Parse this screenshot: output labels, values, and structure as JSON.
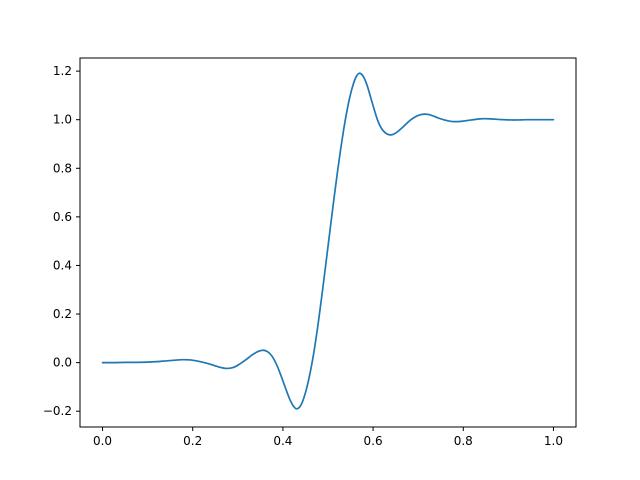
{
  "figure": {
    "background": "#ffffff"
  },
  "chart_data": {
    "type": "line",
    "title": "",
    "xlabel": "",
    "ylabel": "",
    "grid": false,
    "legend": null,
    "background": "#ffffff",
    "spine_color": "#000000",
    "tick_label_color": "#000000",
    "xlim": [
      -0.05,
      1.05
    ],
    "ylim": [
      -0.265,
      1.254
    ],
    "xticks": {
      "values": [
        0.0,
        0.2,
        0.4,
        0.6,
        0.8,
        1.0
      ],
      "labels": [
        "0.0",
        "0.2",
        "0.4",
        "0.6",
        "0.8",
        "1.0"
      ]
    },
    "yticks": {
      "values": [
        -0.2,
        0.0,
        0.2,
        0.4,
        0.6,
        0.8,
        1.0,
        1.2
      ],
      "labels": [
        "−0.2",
        "0.0",
        "0.2",
        "0.4",
        "0.6",
        "0.8",
        "1.0",
        "1.2"
      ]
    },
    "series": [
      {
        "name": "series-1",
        "color": "#1f77b4",
        "line_width": 1.7,
        "x": [
          0.0,
          0.025,
          0.05,
          0.075,
          0.1,
          0.12,
          0.14,
          0.16,
          0.178,
          0.195,
          0.212,
          0.23,
          0.248,
          0.262,
          0.276,
          0.29,
          0.304,
          0.318,
          0.332,
          0.345,
          0.356,
          0.366,
          0.376,
          0.386,
          0.396,
          0.406,
          0.415,
          0.423,
          0.43,
          0.437,
          0.444,
          0.451,
          0.458,
          0.465,
          0.472,
          0.479,
          0.486,
          0.493,
          0.5,
          0.507,
          0.514,
          0.521,
          0.528,
          0.535,
          0.542,
          0.549,
          0.556,
          0.562,
          0.568,
          0.574,
          0.58,
          0.587,
          0.594,
          0.602,
          0.61,
          0.618,
          0.627,
          0.636,
          0.645,
          0.654,
          0.664,
          0.674,
          0.684,
          0.694,
          0.704,
          0.714,
          0.724,
          0.734,
          0.746,
          0.758,
          0.77,
          0.782,
          0.794,
          0.806,
          0.818,
          0.83,
          0.842,
          0.854,
          0.866,
          0.878,
          0.89,
          0.905,
          0.92,
          0.94,
          0.96,
          0.98,
          1.0
        ],
        "y": [
          0.0,
          0.0,
          0.001,
          0.001,
          0.002,
          0.004,
          0.007,
          0.01,
          0.012,
          0.011,
          0.006,
          -0.002,
          -0.012,
          -0.02,
          -0.024,
          -0.02,
          -0.006,
          0.012,
          0.032,
          0.046,
          0.051,
          0.045,
          0.026,
          -0.008,
          -0.055,
          -0.106,
          -0.15,
          -0.178,
          -0.19,
          -0.183,
          -0.158,
          -0.117,
          -0.063,
          0.003,
          0.082,
          0.172,
          0.27,
          0.373,
          0.478,
          0.583,
          0.686,
          0.785,
          0.878,
          0.962,
          1.036,
          1.098,
          1.146,
          1.175,
          1.19,
          1.188,
          1.172,
          1.14,
          1.096,
          1.045,
          0.998,
          0.966,
          0.946,
          0.938,
          0.94,
          0.95,
          0.966,
          0.984,
          1.0,
          1.012,
          1.02,
          1.023,
          1.021,
          1.015,
          1.006,
          0.999,
          0.994,
          0.992,
          0.993,
          0.996,
          0.999,
          1.002,
          1.004,
          1.004,
          1.003,
          1.001,
          1.0,
          0.999,
          0.999,
          1.0,
          1.0,
          1.0,
          1.0
        ]
      }
    ]
  }
}
